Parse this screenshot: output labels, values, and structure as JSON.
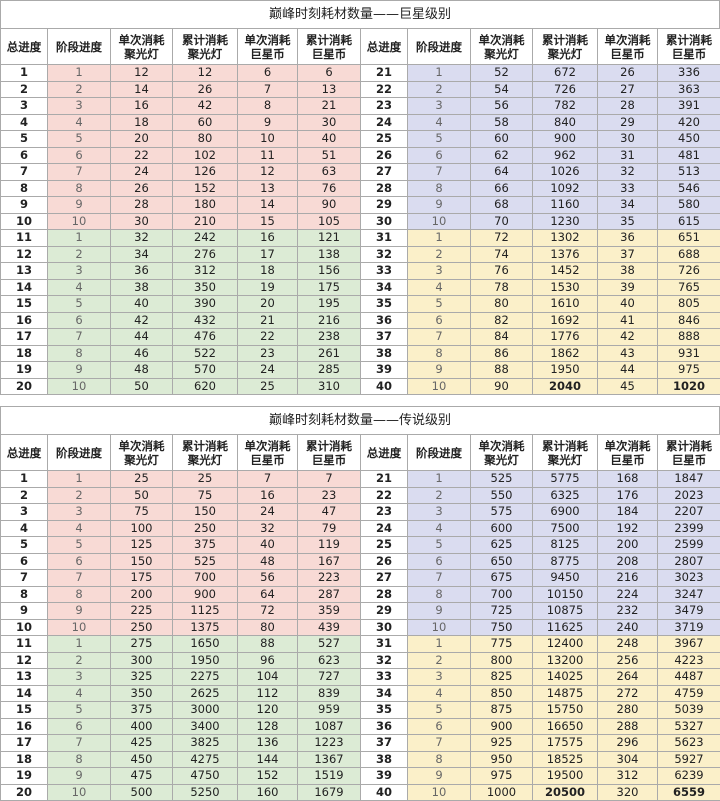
{
  "tables": [
    {
      "title": "巅峰时刻耗材数量——巨星级别",
      "header": [
        [
          "总进度"
        ],
        [
          "阶段进度"
        ],
        [
          "单次消耗",
          "聚光灯"
        ],
        [
          "累计消耗",
          "聚光灯"
        ],
        [
          "单次消耗",
          "巨星币"
        ],
        [
          "累计消耗",
          "巨星币"
        ],
        [
          "总进度"
        ],
        [
          "阶段进度"
        ],
        [
          "单次消耗",
          "聚光灯"
        ],
        [
          "累计消耗",
          "聚光灯"
        ],
        [
          "单次消耗",
          "巨星币"
        ],
        [
          "累计消耗",
          "巨星币"
        ]
      ],
      "rows": [
        [
          1,
          1,
          12,
          12,
          6,
          6,
          21,
          1,
          52,
          672,
          26,
          336
        ],
        [
          2,
          2,
          14,
          26,
          7,
          13,
          22,
          2,
          54,
          726,
          27,
          363
        ],
        [
          3,
          3,
          16,
          42,
          8,
          21,
          23,
          3,
          56,
          782,
          28,
          391
        ],
        [
          4,
          4,
          18,
          60,
          9,
          30,
          24,
          4,
          58,
          840,
          29,
          420
        ],
        [
          5,
          5,
          20,
          80,
          10,
          40,
          25,
          5,
          60,
          900,
          30,
          450
        ],
        [
          6,
          6,
          22,
          102,
          11,
          51,
          26,
          6,
          62,
          962,
          31,
          481
        ],
        [
          7,
          7,
          24,
          126,
          12,
          63,
          27,
          7,
          64,
          1026,
          32,
          513
        ],
        [
          8,
          8,
          26,
          152,
          13,
          76,
          28,
          8,
          66,
          1092,
          33,
          546
        ],
        [
          9,
          9,
          28,
          180,
          14,
          90,
          29,
          9,
          68,
          1160,
          34,
          580
        ],
        [
          10,
          10,
          30,
          210,
          15,
          105,
          30,
          10,
          70,
          1230,
          35,
          615
        ],
        [
          11,
          1,
          32,
          242,
          16,
          121,
          31,
          1,
          72,
          1302,
          36,
          651
        ],
        [
          12,
          2,
          34,
          276,
          17,
          138,
          32,
          2,
          74,
          1376,
          37,
          688
        ],
        [
          13,
          3,
          36,
          312,
          18,
          156,
          33,
          3,
          76,
          1452,
          38,
          726
        ],
        [
          14,
          4,
          38,
          350,
          19,
          175,
          34,
          4,
          78,
          1530,
          39,
          765
        ],
        [
          15,
          5,
          40,
          390,
          20,
          195,
          35,
          5,
          80,
          1610,
          40,
          805
        ],
        [
          16,
          6,
          42,
          432,
          21,
          216,
          36,
          6,
          82,
          1692,
          41,
          846
        ],
        [
          17,
          7,
          44,
          476,
          22,
          238,
          37,
          7,
          84,
          1776,
          42,
          888
        ],
        [
          18,
          8,
          46,
          522,
          23,
          261,
          38,
          8,
          86,
          1862,
          43,
          931
        ],
        [
          19,
          9,
          48,
          570,
          24,
          285,
          39,
          9,
          88,
          1950,
          44,
          975
        ],
        [
          20,
          10,
          50,
          620,
          25,
          310,
          40,
          10,
          90,
          2040,
          45,
          1020
        ]
      ]
    },
    {
      "title": "巅峰时刻耗材数量——传说级别",
      "header": [
        [
          "总进度"
        ],
        [
          "阶段进度"
        ],
        [
          "单次消耗",
          "聚光灯"
        ],
        [
          "累计消耗",
          "聚光灯"
        ],
        [
          "单次消耗",
          "巨星币"
        ],
        [
          "累计消耗",
          "巨星币"
        ],
        [
          "总进度"
        ],
        [
          "阶段进度"
        ],
        [
          "单次消耗",
          "聚光灯"
        ],
        [
          "累计消耗",
          "聚光灯"
        ],
        [
          "单次消耗",
          "巨星币"
        ],
        [
          "累计消耗",
          "巨星币"
        ]
      ],
      "rows": [
        [
          1,
          1,
          25,
          25,
          7,
          7,
          21,
          1,
          525,
          5775,
          168,
          1847
        ],
        [
          2,
          2,
          50,
          75,
          16,
          23,
          22,
          2,
          550,
          6325,
          176,
          2023
        ],
        [
          3,
          3,
          75,
          150,
          24,
          47,
          23,
          3,
          575,
          6900,
          184,
          2207
        ],
        [
          4,
          4,
          100,
          250,
          32,
          79,
          24,
          4,
          600,
          7500,
          192,
          2399
        ],
        [
          5,
          5,
          125,
          375,
          40,
          119,
          25,
          5,
          625,
          8125,
          200,
          2599
        ],
        [
          6,
          6,
          150,
          525,
          48,
          167,
          26,
          6,
          650,
          8775,
          208,
          2807
        ],
        [
          7,
          7,
          175,
          700,
          56,
          223,
          27,
          7,
          675,
          9450,
          216,
          3023
        ],
        [
          8,
          8,
          200,
          900,
          64,
          287,
          28,
          8,
          700,
          10150,
          224,
          3247
        ],
        [
          9,
          9,
          225,
          1125,
          72,
          359,
          29,
          9,
          725,
          10875,
          232,
          3479
        ],
        [
          10,
          10,
          250,
          1375,
          80,
          439,
          30,
          10,
          750,
          11625,
          240,
          3719
        ],
        [
          11,
          1,
          275,
          1650,
          88,
          527,
          31,
          1,
          775,
          12400,
          248,
          3967
        ],
        [
          12,
          2,
          300,
          1950,
          96,
          623,
          32,
          2,
          800,
          13200,
          256,
          4223
        ],
        [
          13,
          3,
          325,
          2275,
          104,
          727,
          33,
          3,
          825,
          14025,
          264,
          4487
        ],
        [
          14,
          4,
          350,
          2625,
          112,
          839,
          34,
          4,
          850,
          14875,
          272,
          4759
        ],
        [
          15,
          5,
          375,
          3000,
          120,
          959,
          35,
          5,
          875,
          15750,
          280,
          5039
        ],
        [
          16,
          6,
          400,
          3400,
          128,
          1087,
          36,
          6,
          900,
          16650,
          288,
          5327
        ],
        [
          17,
          7,
          425,
          3825,
          136,
          1223,
          37,
          7,
          925,
          17575,
          296,
          5623
        ],
        [
          18,
          8,
          450,
          4275,
          144,
          1367,
          38,
          8,
          950,
          18525,
          304,
          5927
        ],
        [
          19,
          9,
          475,
          4750,
          152,
          1519,
          39,
          9,
          975,
          19500,
          312,
          6239
        ],
        [
          20,
          10,
          500,
          5250,
          160,
          1679,
          40,
          10,
          1000,
          20500,
          320,
          6559
        ]
      ]
    }
  ]
}
